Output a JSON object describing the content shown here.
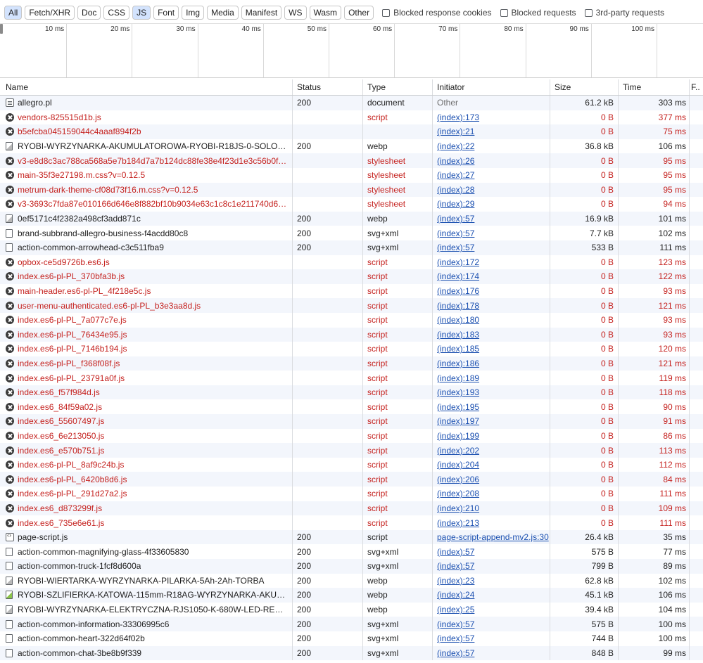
{
  "filters": {
    "chips": [
      {
        "label": "All",
        "active": true
      },
      {
        "label": "Fetch/XHR",
        "active": false
      },
      {
        "label": "Doc",
        "active": false
      },
      {
        "label": "CSS",
        "active": false
      },
      {
        "label": "JS",
        "active": true
      },
      {
        "label": "Font",
        "active": false
      },
      {
        "label": "Img",
        "active": false
      },
      {
        "label": "Media",
        "active": false
      },
      {
        "label": "Manifest",
        "active": false
      },
      {
        "label": "WS",
        "active": false
      },
      {
        "label": "Wasm",
        "active": false
      },
      {
        "label": "Other",
        "active": false
      }
    ],
    "blocked_cookies": "Blocked response cookies",
    "blocked_requests": "Blocked requests",
    "third_party": "3rd-party requests"
  },
  "timeline": {
    "ticks": [
      "10 ms",
      "20 ms",
      "30 ms",
      "40 ms",
      "50 ms",
      "60 ms",
      "70 ms",
      "80 ms",
      "90 ms",
      "100 ms",
      "1"
    ]
  },
  "columns": {
    "name": "Name",
    "status": "Status",
    "type": "Type",
    "initiator": "Initiator",
    "size": "Size",
    "time": "Time",
    "f": "F.."
  },
  "rows": [
    {
      "icon": "doc",
      "name": "allegro.pl",
      "status": "200",
      "type": "document",
      "initiator": "Other",
      "size": "61.2 kB",
      "time": "303 ms",
      "failed": false
    },
    {
      "icon": "err",
      "name": "vendors-825515d1b.js",
      "status": "",
      "type": "script",
      "initiator": "(index):173",
      "size": "0 B",
      "time": "377 ms",
      "failed": true
    },
    {
      "icon": "err",
      "name": "b5efcba045159044c4aaaf894f2b",
      "status": "",
      "type": "",
      "initiator": "(index):21",
      "size": "0 B",
      "time": "75 ms",
      "failed": true
    },
    {
      "icon": "img",
      "name": "RYOBI-WYRZYNARKA-AKUMULATOROWA-RYOBI-R18JS-0-SOLO-BEZ-A...",
      "status": "200",
      "type": "webp",
      "initiator": "(index):22",
      "size": "36.8 kB",
      "time": "106 ms",
      "failed": false
    },
    {
      "icon": "err",
      "name": "v3-e8d8c3ac788ca568a5e7b184d7a7b124dc88fe38e4f23d1e3c56b0ff3d...",
      "status": "",
      "type": "stylesheet",
      "initiator": "(index):26",
      "size": "0 B",
      "time": "95 ms",
      "failed": true
    },
    {
      "icon": "err",
      "name": "main-35f3e27198.m.css?v=0.12.5",
      "status": "",
      "type": "stylesheet",
      "initiator": "(index):27",
      "size": "0 B",
      "time": "95 ms",
      "failed": true
    },
    {
      "icon": "err",
      "name": "metrum-dark-theme-cf08d73f16.m.css?v=0.12.5",
      "status": "",
      "type": "stylesheet",
      "initiator": "(index):28",
      "size": "0 B",
      "time": "95 ms",
      "failed": true
    },
    {
      "icon": "err",
      "name": "v3-3693c7fda87e010166d646e8f882bf10b9034e63c1c8c1e211740d6c4f...",
      "status": "",
      "type": "stylesheet",
      "initiator": "(index):29",
      "size": "0 B",
      "time": "94 ms",
      "failed": true
    },
    {
      "icon": "img",
      "name": "0ef5171c4f2382a498cf3add871c",
      "status": "200",
      "type": "webp",
      "initiator": "(index):57",
      "size": "16.9 kB",
      "time": "101 ms",
      "failed": false
    },
    {
      "icon": "file",
      "name": "brand-subbrand-allegro-business-f4acdd80c8",
      "status": "200",
      "type": "svg+xml",
      "initiator": "(index):57",
      "size": "7.7 kB",
      "time": "102 ms",
      "failed": false
    },
    {
      "icon": "file",
      "name": "action-common-arrowhead-c3c511fba9",
      "status": "200",
      "type": "svg+xml",
      "initiator": "(index):57",
      "size": "533 B",
      "time": "111 ms",
      "failed": false
    },
    {
      "icon": "err",
      "name": "opbox-ce5d9726b.es6.js",
      "status": "",
      "type": "script",
      "initiator": "(index):172",
      "size": "0 B",
      "time": "123 ms",
      "failed": true
    },
    {
      "icon": "err",
      "name": "index.es6-pl-PL_370bfa3b.js",
      "status": "",
      "type": "script",
      "initiator": "(index):174",
      "size": "0 B",
      "time": "122 ms",
      "failed": true
    },
    {
      "icon": "err",
      "name": "main-header.es6-pl-PL_4f218e5c.js",
      "status": "",
      "type": "script",
      "initiator": "(index):176",
      "size": "0 B",
      "time": "93 ms",
      "failed": true
    },
    {
      "icon": "err",
      "name": "user-menu-authenticated.es6-pl-PL_b3e3aa8d.js",
      "status": "",
      "type": "script",
      "initiator": "(index):178",
      "size": "0 B",
      "time": "121 ms",
      "failed": true
    },
    {
      "icon": "err",
      "name": "index.es6-pl-PL_7a077c7e.js",
      "status": "",
      "type": "script",
      "initiator": "(index):180",
      "size": "0 B",
      "time": "93 ms",
      "failed": true
    },
    {
      "icon": "err",
      "name": "index.es6-pl-PL_76434e95.js",
      "status": "",
      "type": "script",
      "initiator": "(index):183",
      "size": "0 B",
      "time": "93 ms",
      "failed": true
    },
    {
      "icon": "err",
      "name": "index.es6-pl-PL_7146b194.js",
      "status": "",
      "type": "script",
      "initiator": "(index):185",
      "size": "0 B",
      "time": "120 ms",
      "failed": true
    },
    {
      "icon": "err",
      "name": "index.es6-pl-PL_f368f08f.js",
      "status": "",
      "type": "script",
      "initiator": "(index):186",
      "size": "0 B",
      "time": "121 ms",
      "failed": true
    },
    {
      "icon": "err",
      "name": "index.es6-pl-PL_23791a0f.js",
      "status": "",
      "type": "script",
      "initiator": "(index):189",
      "size": "0 B",
      "time": "119 ms",
      "failed": true
    },
    {
      "icon": "err",
      "name": "index.es6_f57f984d.js",
      "status": "",
      "type": "script",
      "initiator": "(index):193",
      "size": "0 B",
      "time": "118 ms",
      "failed": true
    },
    {
      "icon": "err",
      "name": "index.es6_84f59a02.js",
      "status": "",
      "type": "script",
      "initiator": "(index):195",
      "size": "0 B",
      "time": "90 ms",
      "failed": true
    },
    {
      "icon": "err",
      "name": "index.es6_55607497.js",
      "status": "",
      "type": "script",
      "initiator": "(index):197",
      "size": "0 B",
      "time": "91 ms",
      "failed": true
    },
    {
      "icon": "err",
      "name": "index.es6_6e213050.js",
      "status": "",
      "type": "script",
      "initiator": "(index):199",
      "size": "0 B",
      "time": "86 ms",
      "failed": true
    },
    {
      "icon": "err",
      "name": "index.es6_e570b751.js",
      "status": "",
      "type": "script",
      "initiator": "(index):202",
      "size": "0 B",
      "time": "113 ms",
      "failed": true
    },
    {
      "icon": "err",
      "name": "index.es6-pl-PL_8af9c24b.js",
      "status": "",
      "type": "script",
      "initiator": "(index):204",
      "size": "0 B",
      "time": "112 ms",
      "failed": true
    },
    {
      "icon": "err",
      "name": "index.es6-pl-PL_6420b8d6.js",
      "status": "",
      "type": "script",
      "initiator": "(index):206",
      "size": "0 B",
      "time": "84 ms",
      "failed": true
    },
    {
      "icon": "err",
      "name": "index.es6-pl-PL_291d27a2.js",
      "status": "",
      "type": "script",
      "initiator": "(index):208",
      "size": "0 B",
      "time": "111 ms",
      "failed": true
    },
    {
      "icon": "err",
      "name": "index.es6_d873299f.js",
      "status": "",
      "type": "script",
      "initiator": "(index):210",
      "size": "0 B",
      "time": "109 ms",
      "failed": true
    },
    {
      "icon": "err",
      "name": "index.es6_735e6e61.js",
      "status": "",
      "type": "script",
      "initiator": "(index):213",
      "size": "0 B",
      "time": "111 ms",
      "failed": true
    },
    {
      "icon": "script",
      "name": "page-script.js",
      "status": "200",
      "type": "script",
      "initiator": "page-script-append-mv2.js:30",
      "size": "26.4 kB",
      "time": "35 ms",
      "failed": false
    },
    {
      "icon": "file",
      "name": "action-common-magnifying-glass-4f33605830",
      "status": "200",
      "type": "svg+xml",
      "initiator": "(index):57",
      "size": "575 B",
      "time": "77 ms",
      "failed": false
    },
    {
      "icon": "file",
      "name": "action-common-truck-1fcf8d600a",
      "status": "200",
      "type": "svg+xml",
      "initiator": "(index):57",
      "size": "799 B",
      "time": "89 ms",
      "failed": false
    },
    {
      "icon": "img",
      "name": "RYOBI-WIERTARKA-WYRZYNARKA-PILARKA-5Ah-2Ah-TORBA",
      "status": "200",
      "type": "webp",
      "initiator": "(index):23",
      "size": "62.8 kB",
      "time": "102 ms",
      "failed": false
    },
    {
      "icon": "img-green",
      "name": "RYOBI-SZLIFIERKA-KATOWA-115mm-R18AG-WYRZYNARKA-AKUMULAT...",
      "status": "200",
      "type": "webp",
      "initiator": "(index):24",
      "size": "45.1 kB",
      "time": "106 ms",
      "failed": false
    },
    {
      "icon": "img",
      "name": "RYOBI-WYRZYNARKA-ELEKTRYCZNA-RJS1050-K-680W-LED-REGULACJA...",
      "status": "200",
      "type": "webp",
      "initiator": "(index):25",
      "size": "39.4 kB",
      "time": "104 ms",
      "failed": false
    },
    {
      "icon": "file",
      "name": "action-common-information-33306995c6",
      "status": "200",
      "type": "svg+xml",
      "initiator": "(index):57",
      "size": "575 B",
      "time": "100 ms",
      "failed": false
    },
    {
      "icon": "file",
      "name": "action-common-heart-322d64f02b",
      "status": "200",
      "type": "svg+xml",
      "initiator": "(index):57",
      "size": "744 B",
      "time": "100 ms",
      "failed": false
    },
    {
      "icon": "file",
      "name": "action-common-chat-3be8b9f339",
      "status": "200",
      "type": "svg+xml",
      "initiator": "(index):57",
      "size": "848 B",
      "time": "99 ms",
      "failed": false
    }
  ]
}
